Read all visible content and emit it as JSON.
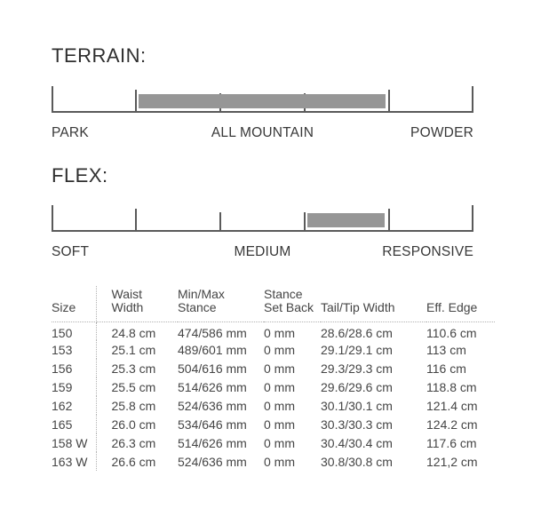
{
  "terrain": {
    "title": "TERRAIN:",
    "labels": {
      "left": "PARK",
      "center": "ALL MOUNTAIN",
      "right": "POWDER"
    },
    "range": {
      "from_pct": 20.6,
      "to_pct": 79.2
    }
  },
  "flex": {
    "title": "FLEX:",
    "labels": {
      "left": "SOFT",
      "center": "MEDIUM",
      "right": "RESPONSIVE"
    },
    "range": {
      "from_pct": 60.6,
      "to_pct": 78.9
    }
  },
  "table": {
    "headers": [
      "Size",
      "Waist\nWidth",
      "Min/Max\nStance",
      "Stance\nSet Back",
      "Tail/Tip Width",
      "Eff. Edge"
    ],
    "rows": [
      [
        "150",
        "24.8 cm",
        "474/586 mm",
        "0 mm",
        "28.6/28.6 cm",
        "110.6 cm"
      ],
      [
        "153",
        "25.1 cm",
        "489/601 mm",
        "0 mm",
        "29.1/29.1 cm",
        "113 cm"
      ],
      [
        "156",
        "25.3 cm",
        "504/616 mm",
        "0 mm",
        "29.3/29.3 cm",
        "116 cm"
      ],
      [
        "159",
        "25.5 cm",
        "514/626 mm",
        "0 mm",
        "29.6/29.6 cm",
        "118.8 cm"
      ],
      [
        "162",
        "25.8 cm",
        "524/636 mm",
        "0 mm",
        "30.1/30.1 cm",
        "121.4 cm"
      ],
      [
        "165",
        "26.0 cm",
        "534/646 mm",
        "0 mm",
        "30.3/30.3 cm",
        "124.2 cm"
      ],
      [
        "158 W",
        "26.3 cm",
        "514/626 mm",
        "0 mm",
        "30.4/30.4 cm",
        "117.6 cm"
      ],
      [
        "163 W",
        "26.6 cm",
        "524/636 mm",
        "0 mm",
        "30.8/30.8 cm",
        "121,2 cm"
      ]
    ]
  },
  "colors": {
    "bar_fill": "#969696",
    "scale_line": "#5a5a5a",
    "dotted_line": "#b2b2b2",
    "text": "#3c3c3c"
  }
}
